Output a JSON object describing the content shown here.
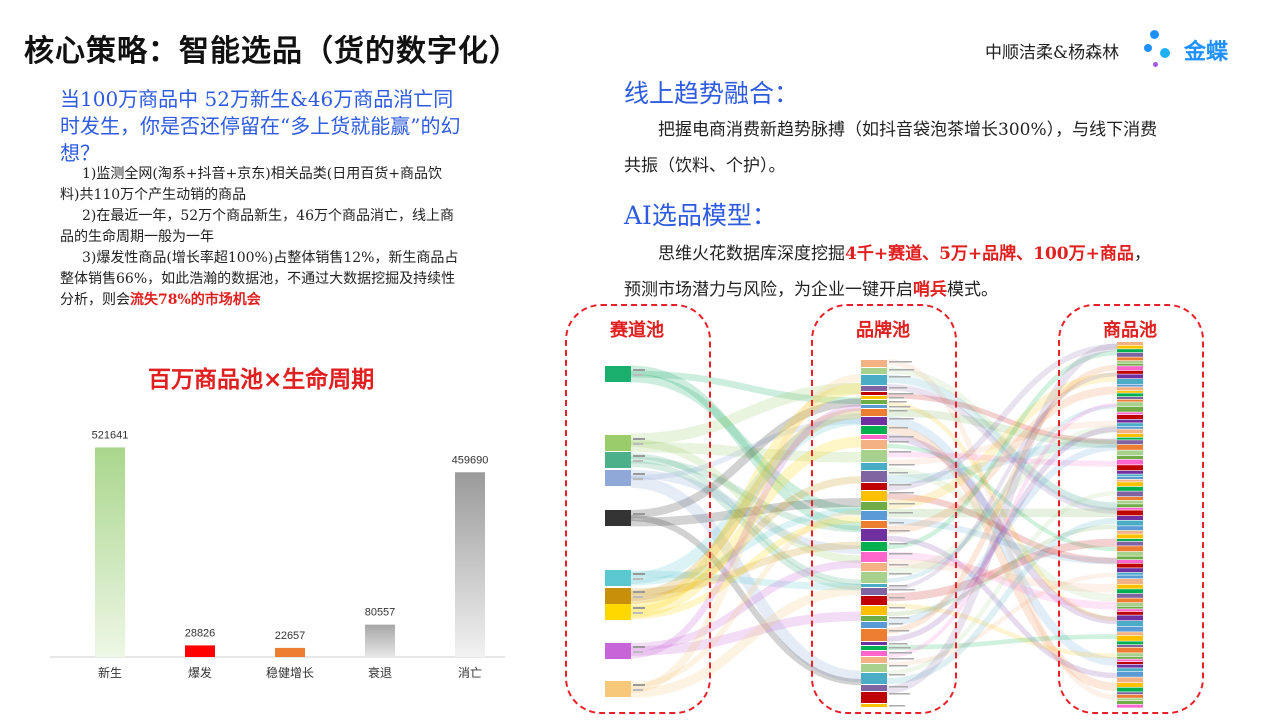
{
  "header": {
    "title": "核心策略：智能选品（货的数字化）",
    "authors": "中顺洁柔&杨森林",
    "logo_text": "金蝶",
    "logo_color": "#1E90FF"
  },
  "left": {
    "lead": "当100万商品中 52万新生&46万商品消亡同时发生，你是否还停留在“多上货就能赢”的幻想？",
    "point1": "1)监测全网(淘系+抖音+京东)相关品类(日用百货+商品饮料)共110万个产生动销的商品",
    "point2": "2)在最近一年，52万个商品新生，46万个商品消亡，线上商品的生命周期一般为一年",
    "point3_prefix": "3)爆发性商品(增长率超100%)占整体销售12%，新生商品占整体销售66%，如此浩瀚的数据池，不通过大数据挖掘及持续性分析，则会",
    "point3_highlight": "流失78%的市场机会"
  },
  "chart_data": {
    "type": "bar",
    "title": "百万商品池×生命周期",
    "categories": [
      "新生",
      "爆发",
      "稳健增长",
      "衰退",
      "消亡"
    ],
    "values": [
      521641,
      28826,
      22657,
      80557,
      459690
    ],
    "colors": [
      "#A9D68C",
      "#FF0000",
      "#ED7D31",
      "#A6A6A6",
      "#A0A0A0"
    ],
    "ylim": [
      0,
      560000
    ],
    "grid": false,
    "legend": "none"
  },
  "right": {
    "section1_heading": "线上趋势融合：",
    "section1_body": "把握电商消费新趋势脉搏（如抖音袋泡茶增长300%），与线下消费共振（饮料、个护）。",
    "section2_heading": "AI选品模型：",
    "section2_prefix": "思维火花数据库深度挖掘",
    "section2_highlight1": "4千+赛道、5万+品牌、100万+商品",
    "section2_mid": "，预测市场潜力与风险，为企业一键开启",
    "section2_highlight2": "哨兵",
    "section2_suffix": "模式。"
  },
  "sankey": {
    "pool1": "赛道池",
    "pool2": "品牌池",
    "pool3": "商品池",
    "track_colors": [
      "#1BAF6E",
      "#9ACD6A",
      "#4CB08A",
      "#8FA8D8",
      "#333333",
      "#5BC8D0",
      "#C8900A",
      "#FFD800",
      "#C765D8",
      "#F8C87A"
    ],
    "brand_colors": [
      "#F4B183",
      "#A9D18E",
      "#4BACC6",
      "#8064A2",
      "#C00000",
      "#FFC000",
      "#70AD47",
      "#5B9BD5",
      "#ED7D31",
      "#7030A0",
      "#00B050",
      "#FF66CC"
    ],
    "box_border": "#E8202A"
  }
}
